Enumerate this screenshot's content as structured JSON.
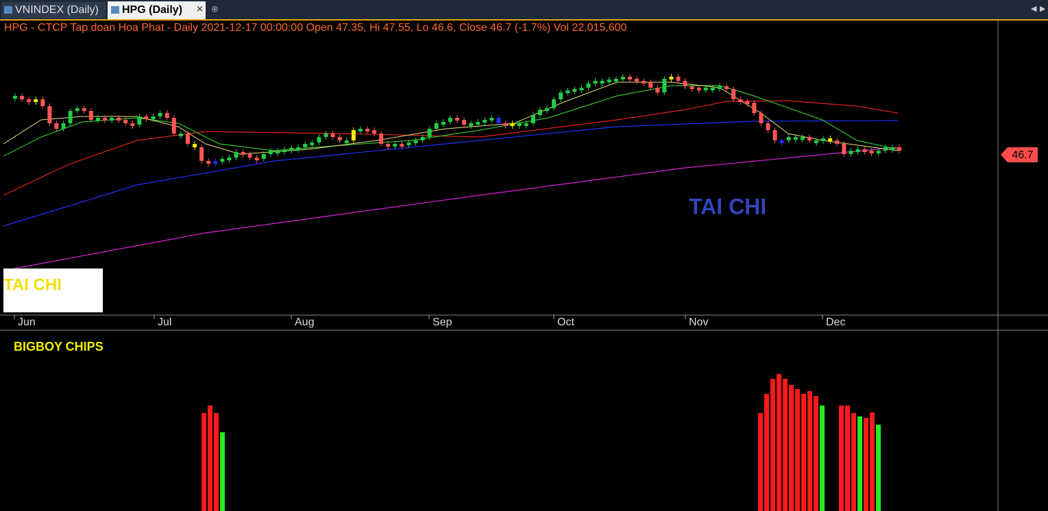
{
  "tabs": [
    {
      "label": "VNINDEX (Daily)"
    },
    {
      "label": "HPG (Daily)"
    }
  ],
  "header": "HPG - CTCP Tap doan Hoa Phat - Daily 2021-12-17 00:00:00 Open 47.35, Hi 47.55, Lo 46.6, Close 46.7 (-1.7%) Vol 22,015,600",
  "price_label": "46.7",
  "watermarks": [
    "TAI CHI",
    "TAI CHI"
  ],
  "months": [
    "Jun",
    "Jul",
    "Aug",
    "Sep",
    "Oct",
    "Nov",
    "Dec"
  ],
  "indicator_title": "BIGBOY CHIPS"
}
